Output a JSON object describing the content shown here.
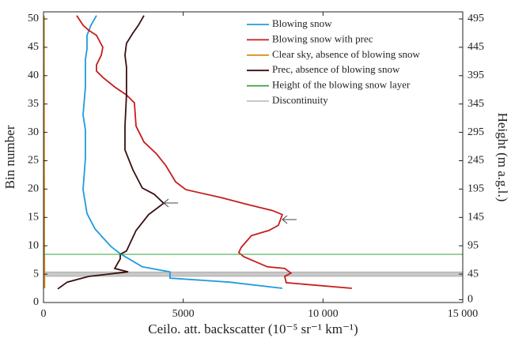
{
  "chart_data": {
    "type": "line",
    "xlabel": "Ceilo. att. backscatter (10⁻⁵ sr⁻¹ km⁻¹)",
    "ylabel": "Bin number",
    "y2label": "Height (m a.g.l.)",
    "xlim": [
      0,
      15000
    ],
    "xticks": [
      0,
      5000,
      {
        "value": 10000,
        "label": "10 000"
      },
      {
        "value": 15000,
        "label": "15 000"
      }
    ],
    "ylim": [
      0,
      51.25
    ],
    "yticks": [
      0,
      5,
      10,
      15,
      20,
      25,
      30,
      35,
      40,
      45,
      50
    ],
    "y2lim": [
      -5,
      507.5
    ],
    "y2ticks": [
      0,
      45,
      95,
      145,
      195,
      245,
      295,
      345,
      395,
      445,
      495
    ],
    "legend": "upper right",
    "series": [
      {
        "name": "Blowing snow",
        "color": "#1f9be0",
        "x": [
          8543,
          6648,
          4526,
          4526,
          3536,
          2744,
          2405,
          1839,
          1556,
          1414,
          1499,
          1499,
          1414,
          1499,
          1499,
          1556,
          1556,
          1697,
          1895
        ],
        "y": [
          2.5,
          3.6,
          4.3,
          5.4,
          6.3,
          8.6,
          9.9,
          13.0,
          15.7,
          19.9,
          25.5,
          30.4,
          33.1,
          38.0,
          42.9,
          44.7,
          47.1,
          48.9,
          50.6
        ]
      },
      {
        "name": "Blowing snow with prec",
        "color": "#c41e1e",
        "x": [
          11033,
          8685,
          8628,
          8854,
          8628,
          8006,
          7157,
          6987,
          7072,
          7440,
          8062,
          8402,
          8543,
          8204,
          7214,
          6365,
          5092,
          4724,
          4385,
          4045,
          3593,
          3310,
          3253,
          2970,
          2546,
          2122,
          1895,
          1895,
          2065,
          2122,
          1895,
          1612,
          1414,
          1188
        ],
        "y": [
          2.5,
          3.5,
          4.6,
          5.2,
          6.0,
          6.3,
          8.1,
          8.8,
          9.7,
          11.8,
          12.7,
          13.6,
          15.5,
          16.2,
          17.4,
          18.5,
          19.9,
          21.3,
          24.1,
          26.2,
          28.3,
          31.1,
          35.2,
          36.6,
          38.0,
          39.7,
          40.8,
          41.9,
          43.6,
          45.0,
          47.1,
          48.0,
          48.9,
          50.6
        ]
      },
      {
        "name": "Clear sky, absence of blowing snow",
        "color": "#d4901a",
        "x": [
          40,
          30,
          20
        ],
        "y": [
          2.5,
          10,
          50.6
        ]
      },
      {
        "name": "Prec, absence of blowing snow",
        "color": "#3a0f0f",
        "x": [
          509,
          849,
          1612,
          3027,
          2546,
          2744,
          2744,
          2970,
          3310,
          3762,
          4300,
          3960,
          3536,
          3197,
          2914,
          2914,
          2970,
          2970,
          2914,
          2970,
          3197,
          3395,
          3593
        ],
        "y": [
          2.4,
          3.6,
          4.6,
          5.4,
          6.0,
          7.7,
          8.5,
          9.1,
          12.7,
          15.5,
          17.5,
          19.1,
          20.2,
          23.4,
          26.9,
          31.1,
          36.6,
          41.5,
          43.6,
          45.7,
          47.5,
          48.9,
          50.6
        ]
      },
      {
        "name": "Height of the blowing snow layer",
        "color": "#3aa03a",
        "x": [
          0,
          15000
        ],
        "y": [
          8.5,
          8.5
        ]
      },
      {
        "name": "Discontinuity",
        "color": "#c8c8c8",
        "band": [
          4.6,
          5.4
        ]
      }
    ]
  }
}
